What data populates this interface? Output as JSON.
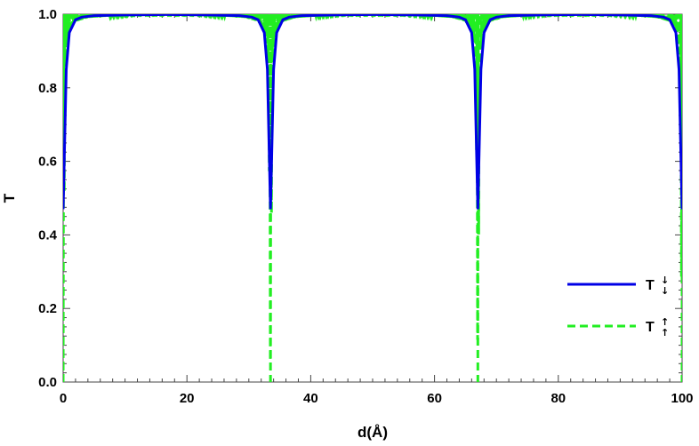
{
  "chart_data": {
    "type": "line",
    "title": "",
    "xlabel": "d(Å)",
    "ylabel": "T",
    "xlim": [
      0,
      100
    ],
    "ylim": [
      0,
      1
    ],
    "x_ticks": [
      0,
      20,
      40,
      60,
      80,
      100
    ],
    "x_tick_labels": [
      "0",
      "20",
      "40",
      "60",
      "80",
      "100"
    ],
    "y_ticks": [
      0,
      0.2,
      0.4,
      0.6,
      0.8,
      1.0
    ],
    "y_tick_labels": [
      "0.0",
      "0.2",
      "0.4",
      "0.6",
      "0.8",
      "1.0"
    ],
    "grid": false,
    "legend_position": "bottom-right",
    "series": [
      {
        "name": "T",
        "arrows": [
          "↓",
          "↓"
        ],
        "style": "solid",
        "color": "#0000e6",
        "dips": [
          0,
          33.5,
          67,
          100
        ],
        "min_value": 0.47,
        "x": [
          0,
          0.2,
          0.5,
          1,
          2,
          3,
          5,
          10,
          16.75,
          23.5,
          28.5,
          30.5,
          31.5,
          32.5,
          33,
          33.3,
          33.5,
          33.7,
          34,
          34.5,
          35.5,
          36.5,
          38.5,
          43.5,
          50.25,
          57,
          62,
          64,
          65,
          66,
          66.5,
          66.8,
          67,
          67.2,
          67.5,
          68,
          69,
          70,
          72,
          77,
          83.5,
          90,
          95,
          97,
          98,
          99,
          99.5,
          99.8,
          100
        ],
        "y": [
          0.47,
          0.62,
          0.85,
          0.95,
          0.985,
          0.992,
          0.996,
          0.998,
          0.999,
          0.998,
          0.996,
          0.992,
          0.985,
          0.95,
          0.85,
          0.62,
          0.47,
          0.62,
          0.85,
          0.95,
          0.985,
          0.992,
          0.996,
          0.998,
          0.999,
          0.998,
          0.996,
          0.992,
          0.985,
          0.95,
          0.85,
          0.62,
          0.47,
          0.62,
          0.85,
          0.95,
          0.985,
          0.992,
          0.996,
          0.998,
          0.999,
          0.998,
          0.996,
          0.992,
          0.985,
          0.95,
          0.85,
          0.62,
          0.47
        ]
      },
      {
        "name": "T",
        "arrows": [
          "↑",
          "↑"
        ],
        "style": "dashed",
        "color": "#22ee22",
        "dips": [
          0,
          33.5,
          67,
          100
        ],
        "min_value": 0.0,
        "envelope": [
          [
            0.3,
            0.86
          ],
          [
            0.6,
            0.93
          ],
          [
            1,
            0.96
          ],
          [
            2,
            0.98
          ],
          [
            4,
            0.99
          ],
          [
            8,
            0.995
          ],
          [
            12,
            0.998
          ]
        ],
        "note": "rapid oscillation between envelope and 1.0 near each dip"
      }
    ]
  }
}
